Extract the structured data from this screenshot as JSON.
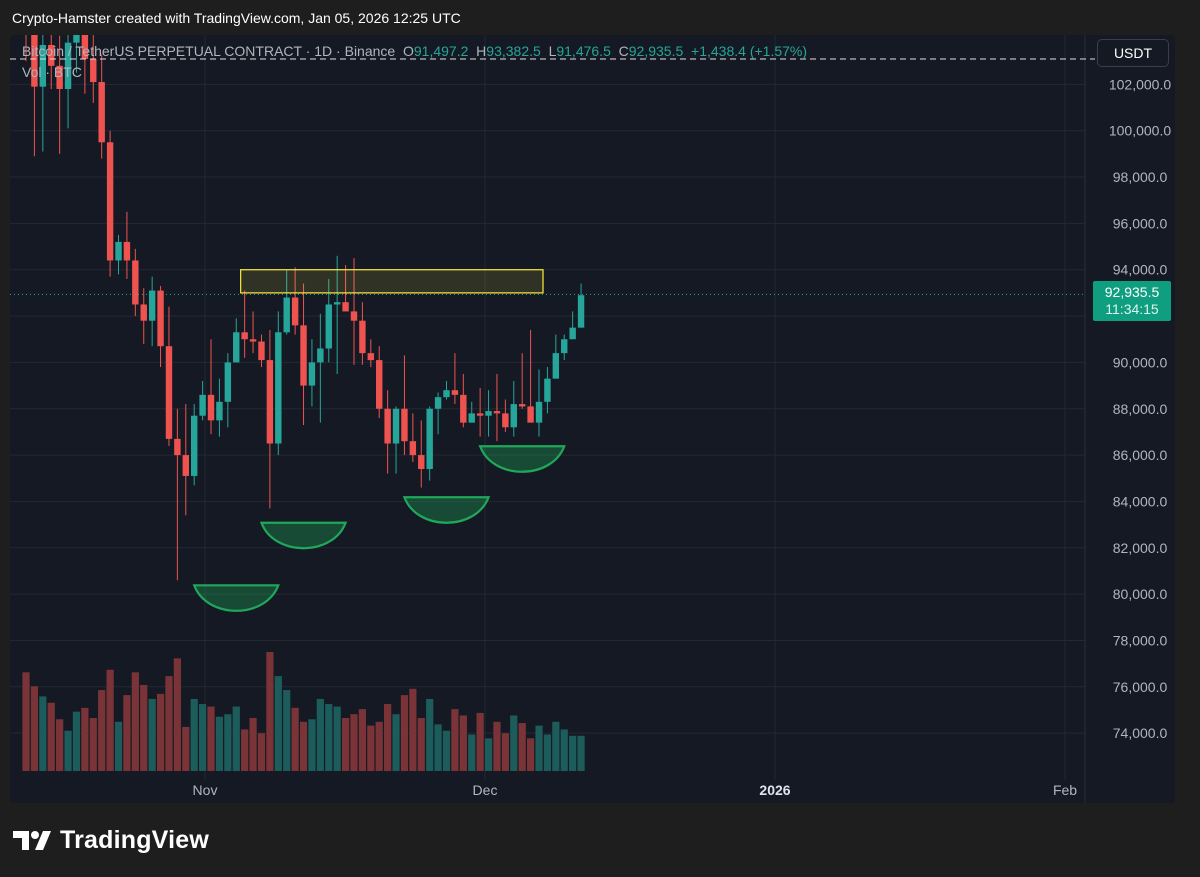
{
  "header": {
    "caption": "Crypto-Hamster created with TradingView.com, Jan 05, 2026 12:25 UTC"
  },
  "legend": {
    "symbol": "Bitcoin / TetherUS PERPETUAL CONTRACT · 1D · Binance",
    "o_key": "O",
    "o_val": "91,497.2",
    "h_key": "H",
    "h_val": "93,382.5",
    "l_key": "L",
    "l_val": "91,476.5",
    "c_key": "C",
    "c_val": "92,935.5",
    "change": "+1,438.4 (+1.57%)",
    "volume_label": "Vol · BTC"
  },
  "currency_button": "USDT",
  "last_price": {
    "price": "92,935.5",
    "countdown": "11:34:15"
  },
  "footer": {
    "brand": "TradingView"
  },
  "colors": {
    "up": "#26a69a",
    "down": "#ef5350",
    "background": "#151924",
    "grid": "#242832",
    "zone": "#ffeb3b",
    "cup": "#1fa85a",
    "badge": "#0f9e80"
  },
  "chart_data": {
    "type": "candlestick",
    "x_labels": [
      "Nov",
      "Dec",
      "2026",
      "Feb"
    ],
    "y_ticks": [
      "102,000.0",
      "100,000.0",
      "98,000.0",
      "96,000.0",
      "94,000.0",
      "90,000.0",
      "88,000.0",
      "86,000.0",
      "84,000.0",
      "82,000.0",
      "80,000.0",
      "78,000.0",
      "76,000.0",
      "74,000.0"
    ],
    "ylim": [
      72500,
      103200
    ],
    "grid": true,
    "last_price": 92935.5,
    "resistance_zone": {
      "low": 93000,
      "high": 94000,
      "start_day": 26,
      "end_day": 61
    },
    "cups": [
      {
        "low": 79000,
        "start_day": 20,
        "end_day": 30
      },
      {
        "low": 81700,
        "start_day": 28,
        "end_day": 38
      },
      {
        "low": 82800,
        "start_day": 45,
        "end_day": 55
      },
      {
        "low": 85000,
        "start_day": 54,
        "end_day": 64
      }
    ],
    "candles": [
      [
        105200,
        106500,
        103000,
        104500,
        15200
      ],
      [
        104500,
        104900,
        98900,
        101900,
        14100
      ],
      [
        101900,
        104200,
        99100,
        103700,
        13300
      ],
      [
        103700,
        106000,
        101800,
        102800,
        12800
      ],
      [
        102800,
        104100,
        99000,
        101800,
        11500
      ],
      [
        101800,
        104500,
        100100,
        103800,
        10600
      ],
      [
        103800,
        107200,
        102500,
        105800,
        12100
      ],
      [
        105800,
        106300,
        101600,
        103100,
        12400
      ],
      [
        103100,
        104800,
        101200,
        102100,
        11600
      ],
      [
        102100,
        103300,
        98800,
        99500,
        13800
      ],
      [
        99500,
        100000,
        93700,
        94400,
        15400
      ],
      [
        94400,
        95500,
        93800,
        95200,
        11300
      ],
      [
        95200,
        96500,
        93600,
        94400,
        13400
      ],
      [
        94400,
        94900,
        92000,
        92500,
        15200
      ],
      [
        92500,
        93200,
        90800,
        91800,
        14200
      ],
      [
        91800,
        93700,
        90700,
        93100,
        13100
      ],
      [
        93100,
        93300,
        89800,
        90700,
        13500
      ],
      [
        90700,
        92400,
        86400,
        86700,
        14900
      ],
      [
        86700,
        88000,
        80600,
        86000,
        16300
      ],
      [
        86000,
        88200,
        83400,
        85100,
        10900
      ],
      [
        85100,
        88200,
        84700,
        87700,
        13100
      ],
      [
        87700,
        89200,
        87500,
        88600,
        12700
      ],
      [
        88600,
        91000,
        86900,
        87500,
        12500
      ],
      [
        87500,
        89300,
        86800,
        88300,
        11700
      ],
      [
        88300,
        90400,
        87200,
        90000,
        11900
      ],
      [
        90000,
        91900,
        90000,
        91300,
        12500
      ],
      [
        91300,
        93100,
        90200,
        91000,
        10700
      ],
      [
        91000,
        92200,
        90400,
        90900,
        11600
      ],
      [
        90900,
        91200,
        89800,
        90100,
        10400
      ],
      [
        90100,
        91400,
        83700,
        86500,
        16800
      ],
      [
        86500,
        92200,
        86000,
        91300,
        14900
      ],
      [
        91300,
        94000,
        91200,
        92800,
        13800
      ],
      [
        92800,
        94100,
        91200,
        91600,
        12400
      ],
      [
        91600,
        93400,
        87300,
        89000,
        11300
      ],
      [
        89000,
        91000,
        88100,
        90000,
        11500
      ],
      [
        90000,
        92100,
        87400,
        90600,
        13100
      ],
      [
        90600,
        93600,
        90000,
        92500,
        12700
      ],
      [
        92500,
        94600,
        89500,
        92600,
        12500
      ],
      [
        92600,
        94200,
        92300,
        92200,
        11600
      ],
      [
        92200,
        94500,
        89900,
        91800,
        11900
      ],
      [
        91800,
        92600,
        89900,
        90400,
        12300
      ],
      [
        90400,
        91000,
        89800,
        90100,
        11000
      ],
      [
        90100,
        90700,
        87600,
        88000,
        11300
      ],
      [
        88000,
        88800,
        85200,
        86500,
        12700
      ],
      [
        86500,
        88100,
        85200,
        88000,
        11900
      ],
      [
        88000,
        90300,
        86000,
        86600,
        13400
      ],
      [
        86600,
        87800,
        85700,
        86000,
        13900
      ],
      [
        86000,
        87500,
        84600,
        85400,
        11600
      ],
      [
        85400,
        88100,
        84900,
        88000,
        13100
      ],
      [
        88000,
        88700,
        86900,
        88500,
        11100
      ],
      [
        88500,
        89200,
        88400,
        88800,
        10600
      ],
      [
        88800,
        90400,
        88200,
        88600,
        12300
      ],
      [
        88600,
        89500,
        87200,
        87400,
        11800
      ],
      [
        87400,
        88300,
        87400,
        87800,
        10300
      ],
      [
        87800,
        88900,
        86800,
        87700,
        12000
      ],
      [
        87700,
        88800,
        86800,
        87900,
        10000
      ],
      [
        87900,
        89500,
        86600,
        87800,
        11300
      ],
      [
        87800,
        88400,
        87000,
        87200,
        10400
      ],
      [
        87200,
        89200,
        86800,
        88200,
        11800
      ],
      [
        88200,
        90400,
        88000,
        88100,
        11200
      ],
      [
        88100,
        91400,
        87500,
        87400,
        10000
      ],
      [
        87400,
        89700,
        86800,
        88300,
        11000
      ],
      [
        88300,
        89800,
        87800,
        89300,
        10300
      ],
      [
        89300,
        91200,
        89300,
        90400,
        11300
      ],
      [
        90400,
        91200,
        90100,
        91000,
        10700
      ],
      [
        91000,
        92200,
        91000,
        91500,
        10200
      ],
      [
        91500,
        93400,
        91500,
        92900,
        10200
      ]
    ]
  }
}
